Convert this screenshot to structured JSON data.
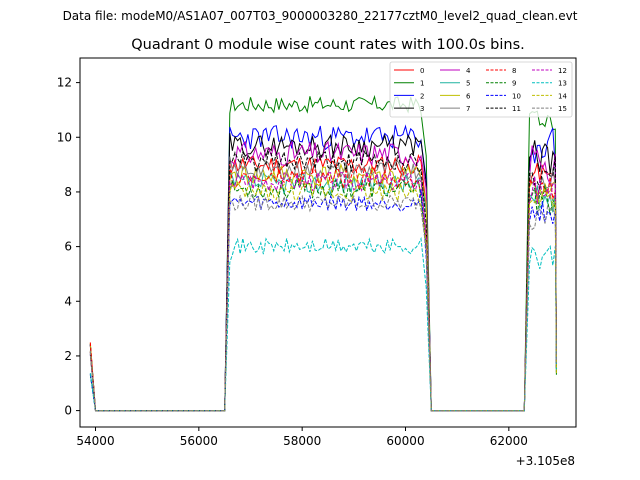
{
  "suptitle": "Data file: modeM0/AS1A07_007T03_9000003280_22177cztM0_level2_quad_clean.evt",
  "chart_data": {
    "type": "line",
    "title": "Quadrant 0 module wise count rates with 100.0s bins.",
    "xlabel": "",
    "ylabel": "",
    "x_offset_label": "+3.105e8",
    "xlim": [
      53700,
      63300
    ],
    "ylim": [
      -0.6,
      12.9
    ],
    "xticks": [
      54000,
      56000,
      58000,
      60000,
      62000
    ],
    "xtick_labels": [
      "54000",
      "56000",
      "58000",
      "60000",
      "62000"
    ],
    "yticks": [
      0,
      2,
      4,
      6,
      8,
      10,
      12
    ],
    "ytick_labels": [
      "0",
      "2",
      "4",
      "6",
      "8",
      "10",
      "12"
    ],
    "grid": false,
    "legend_position": "top-right",
    "legend_columns": 4,
    "bin_width_s": 100,
    "x_structure": {
      "start_x": 53900,
      "first_gap": [
        54000,
        56500
      ],
      "orbit_active": [
        56600,
        60300
      ],
      "second_gap": [
        60500,
        62300
      ],
      "final_active": [
        62400,
        62900
      ]
    },
    "series": [
      {
        "name": "0",
        "color": "#ff0000",
        "dash": "solid",
        "level": 9.0,
        "noise": 0.35,
        "seed": 11
      },
      {
        "name": "1",
        "color": "#008000",
        "dash": "solid",
        "level": 11.2,
        "noise": 0.3,
        "seed": 17
      },
      {
        "name": "2",
        "color": "#0000ff",
        "dash": "solid",
        "level": 10.0,
        "noise": 0.45,
        "seed": 23
      },
      {
        "name": "3",
        "color": "#000000",
        "dash": "solid",
        "level": 9.7,
        "noise": 0.4,
        "seed": 29
      },
      {
        "name": "4",
        "color": "#bf00bf",
        "dash": "solid",
        "level": 9.4,
        "noise": 0.45,
        "seed": 31
      },
      {
        "name": "5",
        "color": "#1fb3a0",
        "dash": "solid",
        "level": 8.3,
        "noise": 0.4,
        "seed": 37
      },
      {
        "name": "6",
        "color": "#bfbf00",
        "dash": "solid",
        "level": 8.6,
        "noise": 0.4,
        "seed": 41
      },
      {
        "name": "7",
        "color": "#808080",
        "dash": "solid",
        "level": 8.8,
        "noise": 0.35,
        "seed": 43
      },
      {
        "name": "8",
        "color": "#ff0000",
        "dash": "dashed",
        "level": 8.5,
        "noise": 0.4,
        "seed": 47
      },
      {
        "name": "9",
        "color": "#008000",
        "dash": "dashed",
        "level": 8.1,
        "noise": 0.35,
        "seed": 53
      },
      {
        "name": "10",
        "color": "#0000ff",
        "dash": "dashed",
        "level": 7.6,
        "noise": 0.3,
        "seed": 59
      },
      {
        "name": "11",
        "color": "#000000",
        "dash": "dashed",
        "level": 9.1,
        "noise": 0.4,
        "seed": 61
      },
      {
        "name": "12",
        "color": "#bf00bf",
        "dash": "dashed",
        "level": 8.4,
        "noise": 0.35,
        "seed": 67
      },
      {
        "name": "13",
        "color": "#00bfbf",
        "dash": "dashed",
        "level": 6.0,
        "noise": 0.3,
        "seed": 71
      },
      {
        "name": "14",
        "color": "#bfbf00",
        "dash": "dashed",
        "level": 8.0,
        "noise": 0.35,
        "seed": 73
      },
      {
        "name": "15",
        "color": "#808080",
        "dash": "dashed",
        "level": 7.6,
        "noise": 0.3,
        "seed": 79
      }
    ]
  }
}
